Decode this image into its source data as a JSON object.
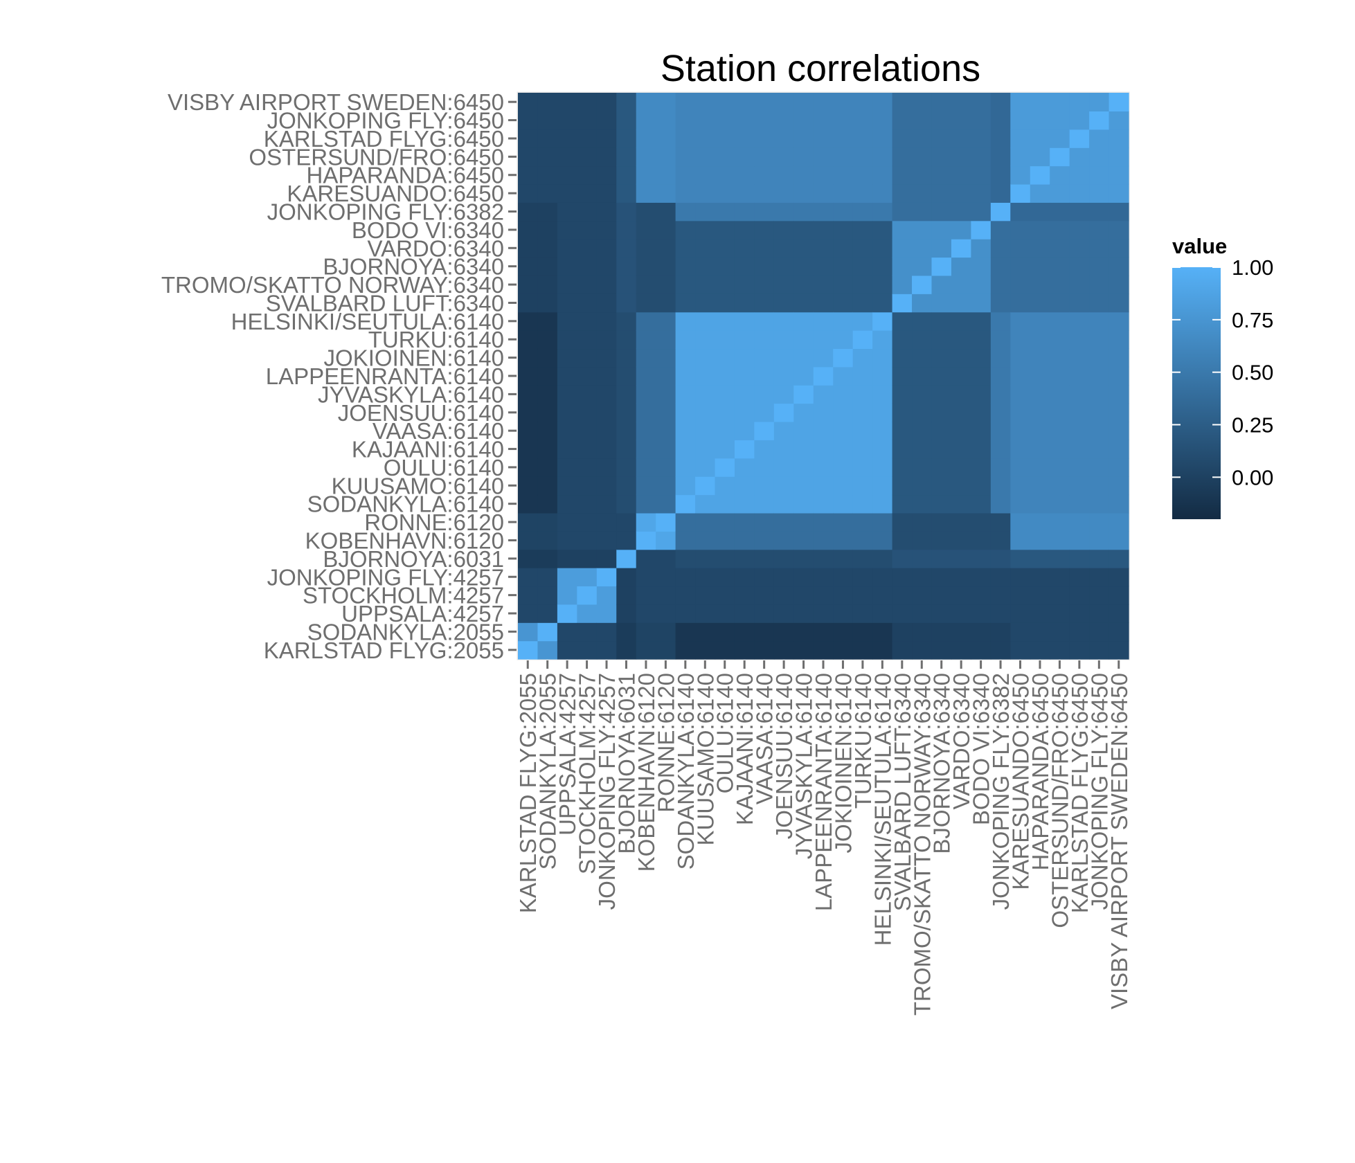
{
  "chart_data": {
    "type": "heatmap",
    "title": "Station correlations",
    "xlabel": "",
    "ylabel": "",
    "legend": {
      "title": "value",
      "placement": "right",
      "breaks": [
        0.0,
        0.25,
        0.5,
        0.75,
        1.0
      ],
      "break_labels": [
        "0.00",
        "0.25",
        "0.50",
        "0.75",
        "1.00"
      ],
      "limits": [
        -0.2,
        1.0
      ],
      "low_color": "#132b43",
      "high_color": "#56b1f7"
    },
    "grid": false,
    "stations": [
      "KARLSTAD FLYG:2055",
      "SODANKYLA:2055",
      "UPPSALA:4257",
      "STOCKHOLM:4257",
      "JONKOPING FLY:4257",
      "BJORNOYA:6031",
      "KOBENHAVN:6120",
      "RONNE:6120",
      "SODANKYLA:6140",
      "KUUSAMO:6140",
      "OULU:6140",
      "KAJAANI:6140",
      "VAASA:6140",
      "JOENSUU:6140",
      "JYVASKYLA:6140",
      "LAPPEENRANTA:6140",
      "JOKIOINEN:6140",
      "TURKU:6140",
      "HELSINKI/SEUTULA:6140",
      "SVALBARD LUFT:6340",
      "TROMO/SKATTO NORWAY:6340",
      "BJORNOYA:6340",
      "VARDO:6340",
      "BODO VI:6340",
      "JONKOPING FLY:6382",
      "KARESUANDO:6450",
      "HAPARANDA:6450",
      "OSTERSUND/FRO:6450",
      "KARLSTAD FLYG:6450",
      "JONKOPING FLY:6450",
      "VISBY AIRPORT SWEDEN:6450"
    ],
    "groups": [
      0,
      0,
      1,
      1,
      1,
      2,
      3,
      3,
      4,
      4,
      4,
      4,
      4,
      4,
      4,
      4,
      4,
      4,
      4,
      5,
      5,
      5,
      5,
      5,
      6,
      7,
      7,
      7,
      7,
      7,
      7
    ],
    "group_correlations": [
      [
        0.75,
        0.05,
        -0.05,
        0.02,
        -0.1,
        0.0,
        0.0,
        0.05
      ],
      [
        0.05,
        0.82,
        0.0,
        0.05,
        0.05,
        0.05,
        0.05,
        0.05
      ],
      [
        -0.05,
        0.0,
        1.0,
        0.05,
        0.1,
        0.15,
        0.15,
        0.2
      ],
      [
        0.02,
        0.05,
        0.05,
        0.9,
        0.4,
        0.1,
        0.1,
        0.65
      ],
      [
        -0.1,
        0.05,
        0.1,
        0.4,
        0.88,
        0.2,
        0.5,
        0.6
      ],
      [
        0.0,
        0.05,
        0.15,
        0.1,
        0.2,
        0.7,
        0.4,
        0.4
      ],
      [
        0.0,
        0.05,
        0.15,
        0.1,
        0.5,
        0.4,
        1.0,
        0.35
      ],
      [
        0.05,
        0.05,
        0.2,
        0.65,
        0.6,
        0.4,
        0.35,
        0.8
      ]
    ],
    "diagonal": 1.0
  }
}
